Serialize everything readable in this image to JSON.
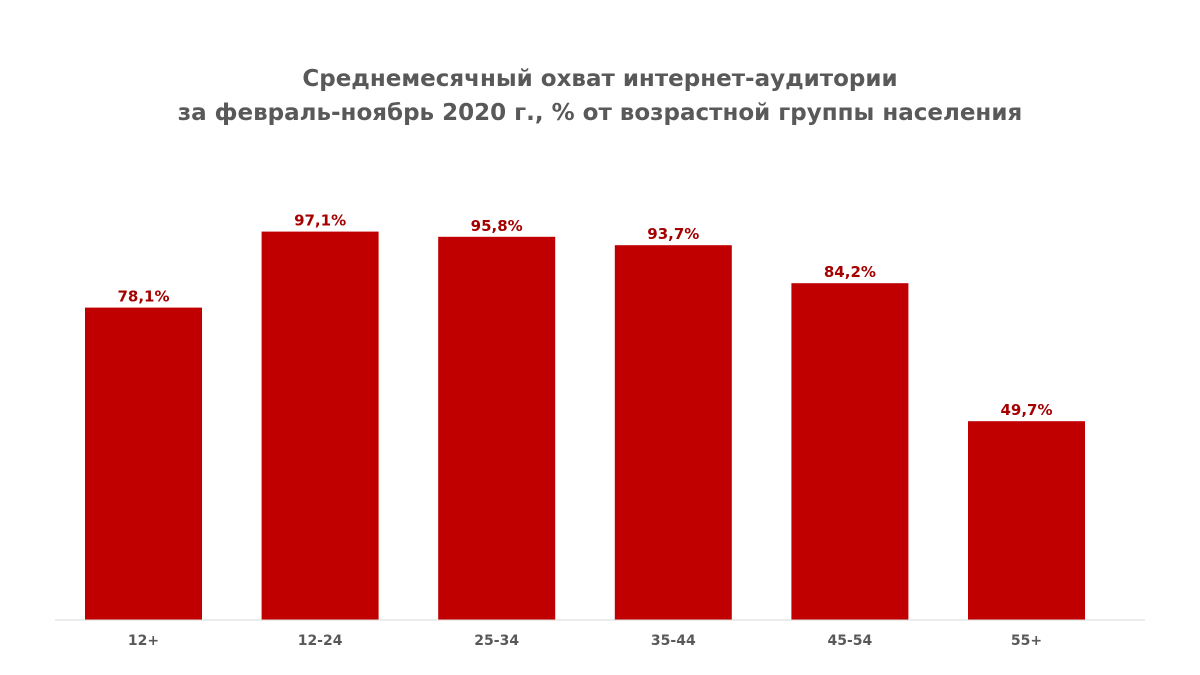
{
  "chart_data": {
    "type": "bar",
    "title_line1": "Среднемесячный охват интернет-аудитории",
    "title_line2": "за февраль-ноябрь 2020 г., % от возрастной группы населения",
    "categories": [
      "12+",
      "12-24",
      "25-34",
      "35-44",
      "45-54",
      "55+"
    ],
    "values": [
      78.1,
      97.1,
      95.8,
      93.7,
      84.2,
      49.7
    ],
    "data_labels": [
      "78,1%",
      "97,1%",
      "95,8%",
      "93,7%",
      "84,2%",
      "49,7%"
    ],
    "ylim": [
      0,
      100
    ],
    "grid": false,
    "legend": "none"
  },
  "colors": {
    "bar": "#c00000",
    "data_label": "#a50000",
    "tick_label": "#595959",
    "axis_line": "#d9d9d9",
    "title": "#595959"
  }
}
